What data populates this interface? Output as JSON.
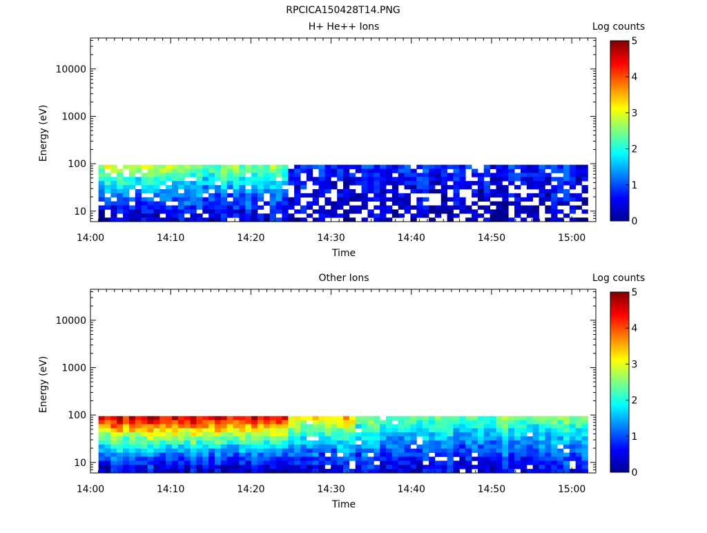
{
  "figure": {
    "title": "RPCICA150428T14.PNG"
  },
  "chart_data": [
    {
      "type": "heatmap",
      "title": "H+ He++ Ions",
      "xlabel": "Time",
      "ylabel": "Energy (eV)",
      "y_scale": "log",
      "x_ticks": [
        "14:00",
        "14:10",
        "14:20",
        "14:30",
        "14:40",
        "14:50",
        "15:00"
      ],
      "y_ticks": [
        "10",
        "100",
        "1000",
        "10000"
      ],
      "ylim": [
        6,
        45000
      ],
      "xlim": [
        "14:00",
        "15:03"
      ],
      "colorbar": {
        "label": "Log counts",
        "ticks": [
          "0",
          "1",
          "2",
          "3",
          "4",
          "5"
        ],
        "range": [
          0,
          5
        ],
        "colormap": "jet"
      },
      "data_extent": {
        "time_start": "14:01",
        "time_end": "15:02",
        "energy_min_eV": 6,
        "energy_max_eV": 95
      },
      "profile": {
        "segments": [
          {
            "from": "14:01",
            "to": "14:11",
            "log_counts_at_top": 2.8,
            "log_counts_at_bottom": 0.4,
            "empty_fraction": 0.12
          },
          {
            "from": "14:11",
            "to": "14:25",
            "log_counts_at_top": 2.5,
            "log_counts_at_bottom": 0.5,
            "empty_fraction": 0.1
          },
          {
            "from": "14:25",
            "to": "15:02",
            "log_counts_at_top": 0.8,
            "log_counts_at_bottom": 0.3,
            "empty_fraction": 0.22
          }
        ]
      }
    },
    {
      "type": "heatmap",
      "title": "Other Ions",
      "xlabel": "Time",
      "ylabel": "Energy (eV)",
      "y_scale": "log",
      "x_ticks": [
        "14:00",
        "14:10",
        "14:20",
        "14:30",
        "14:40",
        "14:50",
        "15:00"
      ],
      "y_ticks": [
        "10",
        "100",
        "1000",
        "10000"
      ],
      "ylim": [
        6,
        45000
      ],
      "xlim": [
        "14:00",
        "15:03"
      ],
      "colorbar": {
        "label": "Log counts",
        "ticks": [
          "0",
          "1",
          "2",
          "3",
          "4",
          "5"
        ],
        "range": [
          0,
          5
        ],
        "colormap": "jet"
      },
      "data_extent": {
        "time_start": "14:01",
        "time_end": "15:02",
        "energy_min_eV": 6,
        "energy_max_eV": 95
      },
      "profile": {
        "segments": [
          {
            "from": "14:01",
            "to": "14:25",
            "log_counts_at_top": 4.5,
            "log_counts_at_bottom": 0.5,
            "empty_fraction": 0.0
          },
          {
            "from": "14:25",
            "to": "14:33",
            "log_counts_at_top": 3.3,
            "log_counts_at_bottom": 0.6,
            "empty_fraction": 0.02
          },
          {
            "from": "14:33",
            "to": "15:02",
            "log_counts_at_top": 2.4,
            "log_counts_at_bottom": 0.6,
            "empty_fraction": 0.04
          }
        ]
      }
    }
  ]
}
